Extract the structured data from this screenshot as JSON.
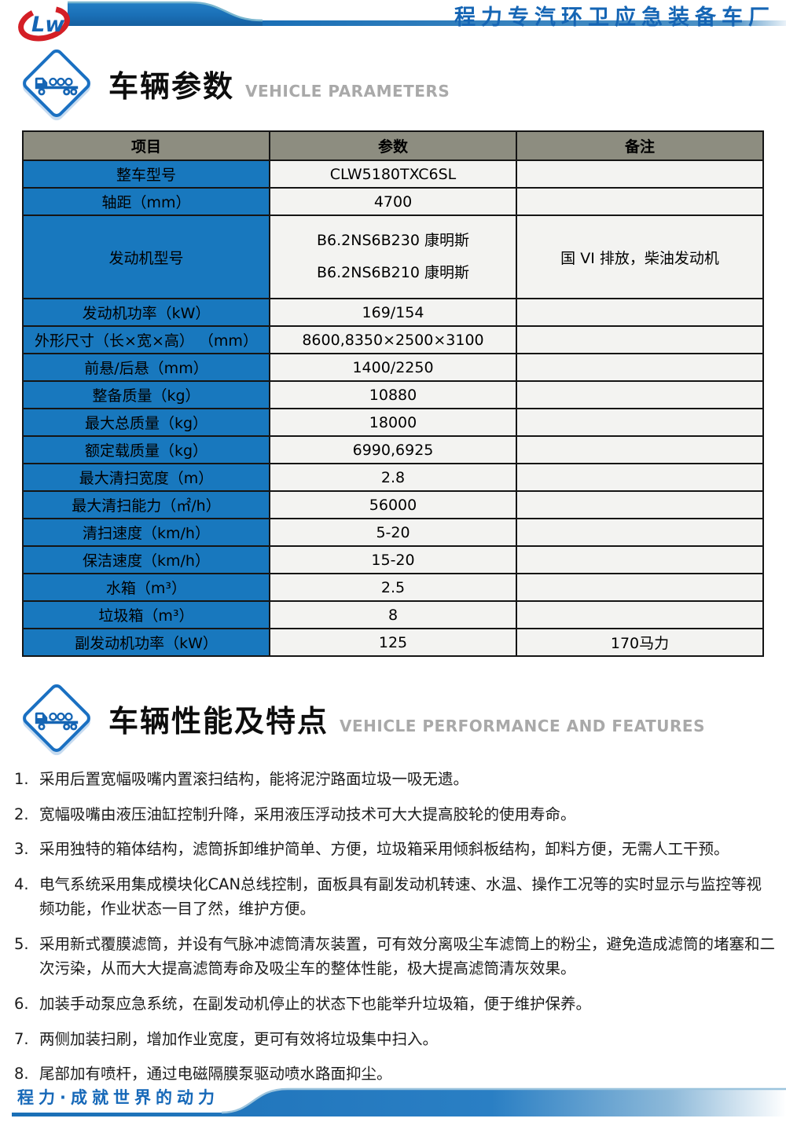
{
  "header": {
    "company_name": "程力专汽环卫应急装备车厂"
  },
  "sections": [
    {
      "title": "车辆参数",
      "subtitle": "VEHICLE PARAMETERS"
    },
    {
      "title": "车辆性能及特点",
      "subtitle": "VEHICLE PERFORMANCE AND FEATURES"
    }
  ],
  "table": {
    "headers": [
      "项目",
      "参数",
      "备注"
    ],
    "rows": [
      {
        "item": "整车型号",
        "param": "CLW5180TXC6SL",
        "remark": ""
      },
      {
        "item": "轴距（mm）",
        "param": "4700",
        "remark": ""
      },
      {
        "item": "发动机型号",
        "param_lines": [
          "B6.2NS6B230 康明斯",
          "B6.2NS6B210 康明斯"
        ],
        "remark": "国 VI 排放，柴油发动机",
        "tall": true
      },
      {
        "item": "发动机功率（kW）",
        "param": "169/154",
        "remark": ""
      },
      {
        "item": "外形尺寸（长×宽×高） （mm）",
        "param": "8600,8350×2500×3100",
        "remark": ""
      },
      {
        "item": "前悬/后悬（mm）",
        "param": "1400/2250",
        "remark": ""
      },
      {
        "item": "整备质量（kg）",
        "param": "10880",
        "remark": ""
      },
      {
        "item": "最大总质量（kg）",
        "param": "18000",
        "remark": ""
      },
      {
        "item": "额定载质量（kg）",
        "param": "6990,6925",
        "remark": ""
      },
      {
        "item": "最大清扫宽度（m）",
        "param": "2.8",
        "remark": ""
      },
      {
        "item": "最大清扫能力（㎡/h）",
        "param": "56000",
        "remark": ""
      },
      {
        "item": "清扫速度（km/h）",
        "param": "5-20",
        "remark": ""
      },
      {
        "item": "保洁速度（km/h）",
        "param": "15-20",
        "remark": ""
      },
      {
        "item": "水箱（m³）",
        "param": "2.5",
        "remark": ""
      },
      {
        "item": "垃圾箱（m³）",
        "param": "8",
        "remark": ""
      },
      {
        "item": "副发动机功率（kW）",
        "param": "125",
        "remark": "170马力"
      }
    ]
  },
  "features": [
    "采用后置宽幅吸嘴内置滚扫结构，能将泥泞路面垃圾一吸无遗。",
    "宽幅吸嘴由液压油缸控制升降，采用液压浮动技术可大大提高胶轮的使用寿命。",
    "采用独特的箱体结构，滤筒拆卸维护简单、方便，垃圾箱采用倾斜板结构，卸料方便，无需人工干预。",
    "电气系统采用集成模块化CAN总线控制，面板具有副发动机转速、水温、操作工况等的实时显示与监控等视频功能，作业状态一目了然，维护方便。",
    "采用新式覆膜滤筒，并设有气脉冲滤筒清灰装置，可有效分离吸尘车滤筒上的粉尘，避免造成滤筒的堵塞和二次污染，从而大大提高滤筒寿命及吸尘车的整体性能，极大提高滤筒清灰效果。",
    "加装手动泵应急系统，在副发动机停止的状态下也能举升垃圾箱，便于维护保养。",
    "两侧加装扫刷，增加作业宽度，更可有效将垃圾集中扫入。",
    "尾部加有喷杆，通过电磁隔膜泵驱动喷水路面抑尘。"
  ],
  "footer": {
    "slogan": "程力·成就世界的动力"
  },
  "colors": {
    "item_cell_blue": "#1878be",
    "header_cell_gray": "#8d8d80",
    "band_blue": "#1a72bd",
    "accent_text_blue": "#1565b4",
    "subtitle_gray": "#a9a9a9",
    "logo_red": "#d41f26"
  }
}
